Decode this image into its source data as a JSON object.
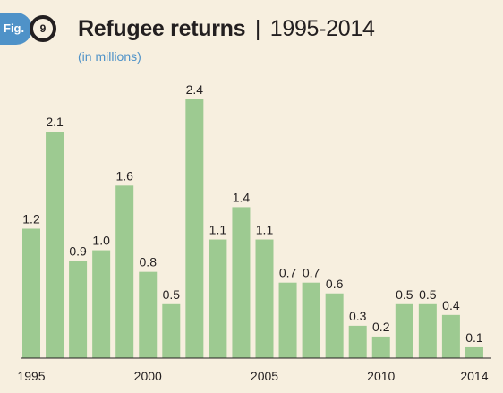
{
  "figure": {
    "badge_label": "Fig.",
    "badge_number": "9",
    "title_main": "Refugee returns",
    "title_separator": "|",
    "title_range": "1995-2014",
    "subtitle": "(in millions)"
  },
  "colors": {
    "bar": "#9dca91",
    "badge": "#4f92c8",
    "background": "#f7efdf",
    "text": "#231f20"
  },
  "chart_data": {
    "type": "bar",
    "categories": [
      "1995",
      "1996",
      "1997",
      "1998",
      "1999",
      "2000",
      "2001",
      "2002",
      "2003",
      "2004",
      "2005",
      "2006",
      "2007",
      "2008",
      "2009",
      "2010",
      "2011",
      "2012",
      "2013",
      "2014"
    ],
    "values": [
      1.2,
      2.1,
      0.9,
      1.0,
      1.6,
      0.8,
      0.5,
      2.4,
      1.1,
      1.4,
      1.1,
      0.7,
      0.7,
      0.6,
      0.3,
      0.2,
      0.5,
      0.5,
      0.4,
      0.1
    ],
    "value_labels": [
      "1.2",
      "2.1",
      "0.9",
      "1.0",
      "1.6",
      "0.8",
      "0.5",
      "2.4",
      "1.1",
      "1.4",
      "1.1",
      "0.7",
      "0.7",
      "0.6",
      "0.3",
      "0.2",
      "0.5",
      "0.5",
      "0.4",
      "0.1"
    ],
    "tick_labels": [
      {
        "category": "1995",
        "label": "1995"
      },
      {
        "category": "2000",
        "label": "2000"
      },
      {
        "category": "2005",
        "label": "2005"
      },
      {
        "category": "2010",
        "label": "2010"
      },
      {
        "category": "2014",
        "label": "2014"
      }
    ],
    "title": "Refugee returns | 1995-2014",
    "subtitle": "(in millions)",
    "ylim": [
      0,
      2.4
    ],
    "grid": false,
    "legend": "none"
  }
}
